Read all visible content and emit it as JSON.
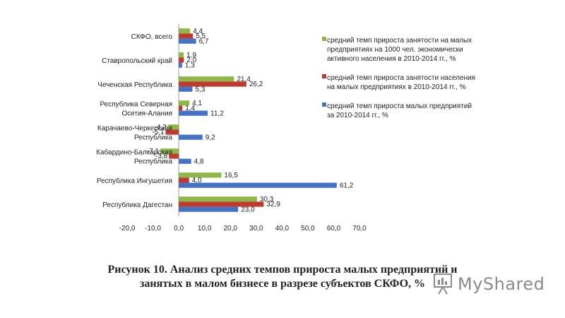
{
  "chart_data": {
    "type": "bar",
    "orientation": "horizontal",
    "categories": [
      [
        "СКФО, всего"
      ],
      [
        "Ставропольский край"
      ],
      [
        "Чеченская Республика"
      ],
      [
        "Республика Северная",
        "Осетия-Алания"
      ],
      [
        "Карачаево-Черкесская",
        "Республика"
      ],
      [
        "Кабардино-Балкарская",
        "Республика"
      ],
      [
        "Республика Ингушетия"
      ],
      [
        "Республика Дагестан"
      ]
    ],
    "series": [
      {
        "name": "средний темп прироста занятости на малых предприятиях на 1000 чел. экономически активного населения в 2010-2014 гг., %",
        "legend_lines": [
          "средний темп прироста занятости на малых",
          "предприятиях на 1000 чел. экономически",
          "активного населения в 2010-2014 гг., %"
        ],
        "color": "#8DB848",
        "values": [
          4.4,
          1.9,
          21.4,
          4.1,
          -4.2,
          -7.1,
          16.5,
          30.3
        ],
        "labels": [
          "4,4",
          "1,9",
          "21,4",
          "4,1",
          "-4,2",
          "-7,1",
          "16,5",
          "30,3"
        ]
      },
      {
        "name": "средний темп прироста занятости населения на малых предприятиях в 2010-2014 гг., %",
        "legend_lines": [
          "средний темп прироста занятости населения",
          "на малых предприятиях в 2010-2014 гг., %"
        ],
        "color": "#C0392F",
        "values": [
          5.5,
          2.0,
          26.2,
          1.4,
          -5.1,
          -3.8,
          4.0,
          32.9
        ],
        "labels": [
          "5,5",
          "2,0",
          "26,2",
          "1,4",
          "-5,1",
          "-3,8",
          "4,0",
          "32,9"
        ]
      },
      {
        "name": "средний темп прироста малых предприятий за 2010-2014 гг., %",
        "legend_lines": [
          "средний темп прироста малых предприятий",
          "за 2010-2014 гг., %"
        ],
        "color": "#4472C4",
        "values": [
          6.7,
          1.3,
          5.3,
          11.2,
          9.2,
          4.8,
          61.2,
          23.0
        ],
        "labels": [
          "6,7",
          "1,3",
          "5,3",
          "11,2",
          "9,2",
          "4,8",
          "61,2",
          "23,0"
        ]
      }
    ],
    "xlim": [
      -20,
      70
    ],
    "xticks": [
      -20,
      -10,
      0,
      10,
      20,
      30,
      40,
      50,
      60,
      70
    ],
    "xtick_labels": [
      "-20,0",
      "-10,0",
      "0,0",
      "10,0",
      "20,0",
      "30,0",
      "40,0",
      "50,0",
      "60,0",
      "70,0"
    ],
    "grid": false,
    "legend_position": "right"
  },
  "caption": {
    "line1": "Рисунок 10. Анализ средних темпов прироста малых предприятий и",
    "line2": "занятых в малом бизнесе в разрезе субъектов СКФО, %"
  },
  "watermark": {
    "text": "MyShared"
  }
}
